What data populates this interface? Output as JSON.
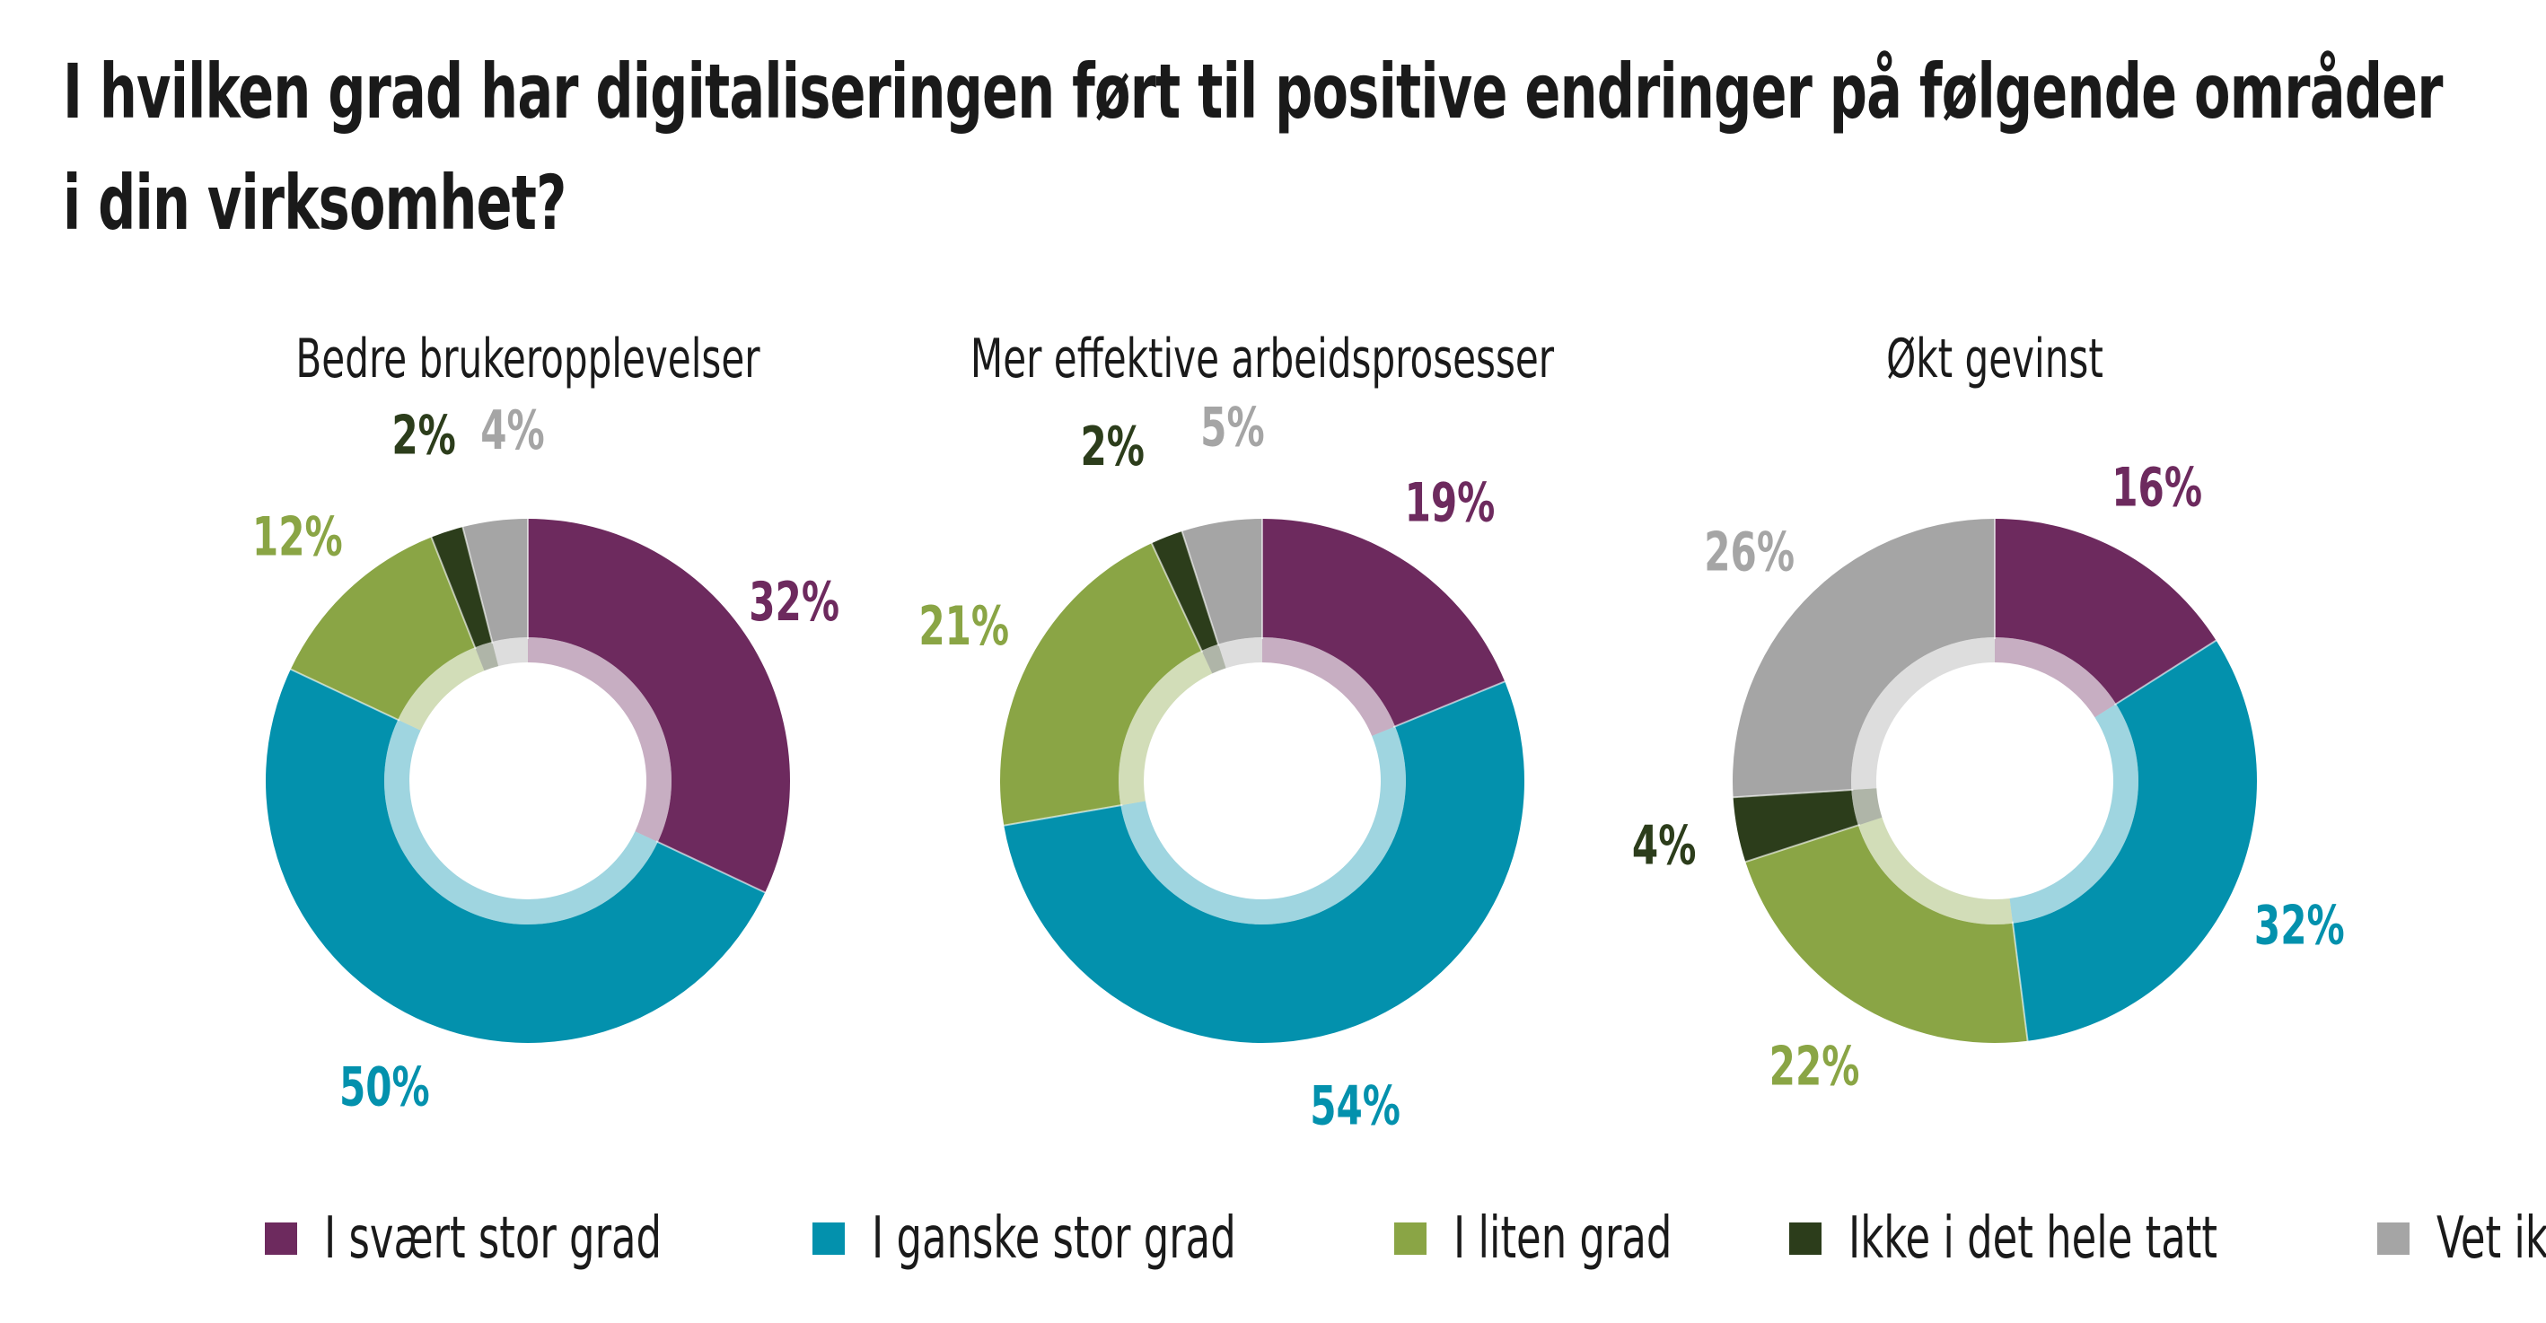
{
  "title_lines": [
    "I hvilken grad har digitaliseringen ført til positive endringer på følgende områder",
    "i din virksomhet?"
  ],
  "chart_data": [
    {
      "type": "pie",
      "title": "Bedre brukeropplevelser",
      "categories": [
        "I svært stor grad",
        "I ganske stor grad",
        "I liten grad",
        "Ikke i det hele tatt",
        "Vet ikke"
      ],
      "values": [
        32,
        50,
        12,
        2,
        4
      ],
      "labels": [
        "32%",
        "50%",
        "12%",
        "2%",
        "4%"
      ]
    },
    {
      "type": "pie",
      "title": "Mer effektive arbeidsprosesser",
      "categories": [
        "I svært stor grad",
        "I ganske stor grad",
        "I liten grad",
        "Ikke i det hele tatt",
        "Vet ikke"
      ],
      "values": [
        19,
        54,
        21,
        2,
        5
      ],
      "labels": [
        "19%",
        "54%",
        "21%",
        "2%",
        "5%"
      ]
    },
    {
      "type": "pie",
      "title": "Økt gevinst",
      "categories": [
        "I svært stor grad",
        "I ganske stor grad",
        "I liten grad",
        "Ikke i det hele tatt",
        "Vet ikke"
      ],
      "values": [
        16,
        32,
        22,
        4,
        26
      ],
      "labels": [
        "16%",
        "32%",
        "22%",
        "4%",
        "26%"
      ]
    }
  ],
  "legend": [
    {
      "label": "I svært stor grad",
      "color": "#6d2a5e"
    },
    {
      "label": "I ganske stor grad",
      "color": "#0391ad"
    },
    {
      "label": "I liten grad",
      "color": "#8aa545"
    },
    {
      "label": "Ikke i det hele tatt",
      "color": "#2c3d1b"
    },
    {
      "label": "Vet ikke",
      "color": "#a5a5a5"
    }
  ],
  "colors": [
    "#6d2a5e",
    "#0391ad",
    "#8aa545",
    "#2c3d1b",
    "#a5a5a5"
  ],
  "label_colors": [
    "#6d2a5e",
    "#0391ad",
    "#8aa545",
    "#2c3d1b",
    "#a5a5a5"
  ]
}
